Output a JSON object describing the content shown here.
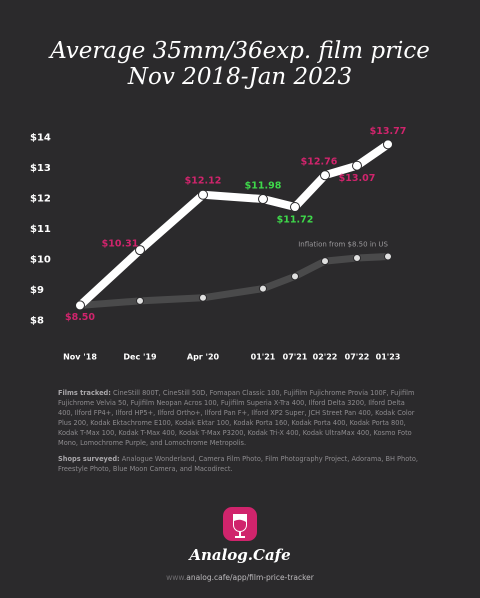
{
  "chart_data": {
    "type": "line",
    "title": "Average 35mm/36exp. film price",
    "subtitle": "Nov 2018-Jan 2023",
    "categories": [
      "Nov '18",
      "Dec '19",
      "Apr '20",
      "01'21",
      "07'21",
      "02'22",
      "07'22",
      "01'23"
    ],
    "ylim": [
      7.5,
      14.5
    ],
    "yticks": [
      {
        "value": 8,
        "label": "$8"
      },
      {
        "value": 9,
        "label": "$9"
      },
      {
        "value": 10,
        "label": "$10"
      },
      {
        "value": 11,
        "label": "$11"
      },
      {
        "value": 12,
        "label": "$12"
      },
      {
        "value": 13,
        "label": "$13"
      },
      {
        "value": 14,
        "label": "$14"
      }
    ],
    "grid": false,
    "series": [
      {
        "color": "#ffffff",
        "values": [
          8.5,
          10.31,
          12.12,
          11.98,
          11.72,
          12.76,
          13.07,
          13.77
        ],
        "value_labels": [
          "$8.50",
          "$10.31",
          "$12.12",
          "$11.98",
          "$11.72",
          "$12.76",
          "$13.07",
          "$13.77"
        ],
        "label_colors": [
          "#d0246c",
          "#d0246c",
          "#d0246c",
          "#3ed84a",
          "#3ed84a",
          "#d0246c",
          "#d0246c",
          "#d0246c"
        ]
      },
      {
        "name": "Inflation from $8.50 in US",
        "color": "#4a4a4b",
        "values": [
          8.5,
          8.65,
          8.75,
          9.05,
          9.45,
          9.95,
          10.05,
          10.1
        ]
      }
    ]
  },
  "notes": [
    {
      "label": "Films tracked:",
      "text": "CineStill 800T, CineStill 50D, Fomapan Classic 100, Fujifilm Fujichrome Provia 100F, Fujifilm Fujichrome Velvia 50, Fujifilm Neopan Acros 100, Fujifilm Superia X-Tra 400, Ilford Delta 3200, Ilford Delta 400, Ilford FP4+, Ilford HP5+, Ilford Ortho+, Ilford Pan F+, Ilford XP2 Super, JCH Street Pan 400, Kodak Color Plus 200, Kodak Ektachrome E100, Kodak Ektar 100, Kodak Porta 160, Kodak Porta 400, Kodak Porta 800, Kodak T-Max 100, Kodak T-Max 400, Kodak T-Max P3200, Kodak Tri-X 400, Kodak UltraMax 400, Kosmo Foto Mono, Lomochrome Purple, and Lomochrome Metropolis."
    },
    {
      "label": "Shops surveyed:",
      "text": "Analogue Wonderland, Camera Film Photo, Film Photography Project, Adorama, BH Photo, Freestyle Photo, Blue Moon Camera, and Macodirect."
    }
  ],
  "brand": "Analog.Cafe",
  "url_prefix": "www.",
  "url": "analog.cafe/app/film-price-tracker"
}
